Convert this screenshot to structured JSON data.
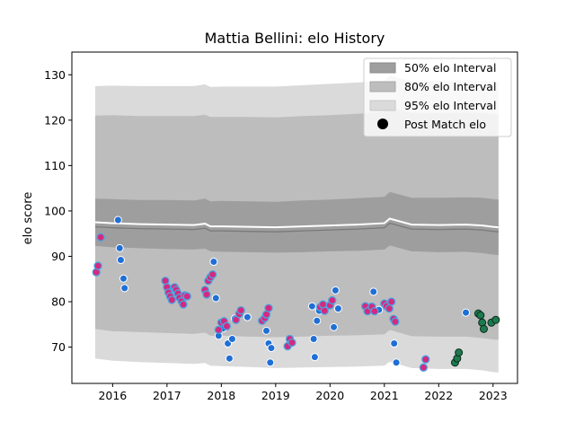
{
  "chart_data": {
    "type": "scatter",
    "title": "Mattia Bellini: elo History",
    "xlabel": "",
    "ylabel": "elo score",
    "xlim": [
      2015.25,
      2023.45
    ],
    "ylim": [
      62,
      135
    ],
    "xticks": [
      2016,
      2017,
      2018,
      2019,
      2020,
      2021,
      2022,
      2023
    ],
    "yticks": [
      70,
      80,
      90,
      100,
      110,
      120,
      130
    ],
    "grid": false,
    "legend": {
      "placement": "top-right",
      "entries": [
        "50% elo Interval",
        "80% elo Interval",
        "95% elo Interval",
        "Post Match elo"
      ]
    },
    "colors": {
      "band50": "#9e9e9e",
      "band80": "#bdbdbd",
      "band95": "#dadada",
      "median": "#ffffff",
      "lower_line": "#7a7a7a",
      "point_blue": "#1f6fd6",
      "point_magenta": "#d6287f",
      "point_green": "#1d7a4f"
    },
    "interval_bands": {
      "x": [
        2015.68,
        2016.0,
        2016.5,
        2017.0,
        2017.5,
        2017.7,
        2017.8,
        2018.0,
        2018.5,
        2019.0,
        2019.5,
        2020.0,
        2020.5,
        2021.0,
        2021.1,
        2021.5,
        2022.0,
        2022.5,
        2022.8,
        2023.0,
        2023.1
      ],
      "mid": [
        97.5,
        97.3,
        97.1,
        97.0,
        96.9,
        97.2,
        96.6,
        96.6,
        96.5,
        96.4,
        96.6,
        96.8,
        97.0,
        97.3,
        98.3,
        97.0,
        96.9,
        97.0,
        96.8,
        96.5,
        96.4
      ],
      "h50": [
        5.2,
        5.3,
        5.3,
        5.4,
        5.4,
        5.5,
        5.5,
        5.6,
        5.6,
        5.6,
        5.7,
        5.7,
        5.8,
        5.8,
        5.9,
        5.9,
        6.0,
        6.0,
        6.1,
        6.1,
        6.1
      ],
      "h80": [
        23.5,
        23.8,
        23.8,
        23.9,
        24.0,
        24.0,
        24.1,
        24.1,
        24.2,
        24.2,
        24.3,
        24.3,
        24.4,
        24.5,
        24.5,
        24.6,
        24.6,
        24.7,
        24.8,
        24.8,
        24.8
      ],
      "h95": [
        30.0,
        30.3,
        30.4,
        30.5,
        30.6,
        30.7,
        30.7,
        30.8,
        30.9,
        31.0,
        31.1,
        31.2,
        31.3,
        31.4,
        31.5,
        31.6,
        31.7,
        31.8,
        31.9,
        32.0,
        32.0
      ]
    },
    "series": [
      {
        "name": "Post Match elo",
        "points_blue": [
          [
            2016.1,
            98.0
          ],
          [
            2016.13,
            91.8
          ],
          [
            2016.15,
            89.2
          ],
          [
            2016.2,
            85.1
          ],
          [
            2016.22,
            83.0
          ],
          [
            2017.9,
            80.8
          ],
          [
            2017.86,
            88.8
          ],
          [
            2018.0,
            75.3
          ],
          [
            2018.03,
            74.1
          ],
          [
            2018.12,
            70.8
          ],
          [
            2018.15,
            67.5
          ],
          [
            2018.2,
            71.8
          ],
          [
            2018.25,
            76.3
          ],
          [
            2018.48,
            76.6
          ],
          [
            2018.83,
            73.6
          ],
          [
            2018.87,
            70.8
          ],
          [
            2018.9,
            66.6
          ],
          [
            2018.92,
            69.8
          ],
          [
            2019.67,
            79.0
          ],
          [
            2019.7,
            71.8
          ],
          [
            2019.72,
            67.8
          ],
          [
            2019.76,
            75.8
          ],
          [
            2019.8,
            78.0
          ],
          [
            2020.07,
            74.4
          ],
          [
            2020.1,
            82.5
          ],
          [
            2020.15,
            78.5
          ],
          [
            2020.8,
            82.2
          ],
          [
            2020.9,
            78.2
          ],
          [
            2021.18,
            70.8
          ],
          [
            2021.22,
            66.6
          ],
          [
            2022.5,
            77.6
          ],
          [
            2017.95,
            72.5
          ]
        ],
        "points_magenta": [
          [
            2015.7,
            86.5
          ],
          [
            2015.73,
            87.9
          ],
          [
            2015.78,
            94.2
          ],
          [
            2016.97,
            84.6
          ],
          [
            2017.0,
            83.2
          ],
          [
            2017.03,
            82.0
          ],
          [
            2017.06,
            81.2
          ],
          [
            2017.09,
            80.4
          ],
          [
            2017.14,
            83.2
          ],
          [
            2017.17,
            82.6
          ],
          [
            2017.2,
            81.8
          ],
          [
            2017.23,
            80.9
          ],
          [
            2017.27,
            80.1
          ],
          [
            2017.3,
            79.4
          ],
          [
            2017.33,
            81.4
          ],
          [
            2017.37,
            81.2
          ],
          [
            2017.7,
            82.6
          ],
          [
            2017.73,
            81.6
          ],
          [
            2017.76,
            84.6
          ],
          [
            2017.8,
            85.4
          ],
          [
            2017.84,
            86.0
          ],
          [
            2017.95,
            73.8
          ],
          [
            2018.0,
            75.4
          ],
          [
            2018.05,
            75.7
          ],
          [
            2018.1,
            74.6
          ],
          [
            2018.27,
            76.0
          ],
          [
            2018.33,
            77.3
          ],
          [
            2018.36,
            78.1
          ],
          [
            2018.75,
            75.8
          ],
          [
            2018.8,
            76.4
          ],
          [
            2018.83,
            77.2
          ],
          [
            2018.87,
            78.6
          ],
          [
            2019.22,
            70.2
          ],
          [
            2019.26,
            71.8
          ],
          [
            2019.3,
            71.0
          ],
          [
            2019.82,
            78.8
          ],
          [
            2019.87,
            79.4
          ],
          [
            2019.9,
            78.0
          ],
          [
            2020.0,
            79.2
          ],
          [
            2020.04,
            80.3
          ],
          [
            2020.65,
            79.0
          ],
          [
            2020.69,
            77.9
          ],
          [
            2020.77,
            78.9
          ],
          [
            2020.82,
            77.9
          ],
          [
            2021.0,
            79.6
          ],
          [
            2021.04,
            79.0
          ],
          [
            2021.09,
            78.5
          ],
          [
            2021.13,
            80.0
          ],
          [
            2021.17,
            76.2
          ],
          [
            2021.2,
            75.6
          ],
          [
            2021.72,
            65.5
          ],
          [
            2021.76,
            67.3
          ]
        ],
        "points_green": [
          [
            2022.3,
            66.6
          ],
          [
            2022.34,
            67.5
          ],
          [
            2022.37,
            68.8
          ],
          [
            2022.73,
            77.4
          ],
          [
            2022.77,
            77.0
          ],
          [
            2022.8,
            75.4
          ],
          [
            2022.83,
            74.0
          ],
          [
            2022.97,
            75.4
          ],
          [
            2023.05,
            76.0
          ]
        ]
      }
    ]
  }
}
